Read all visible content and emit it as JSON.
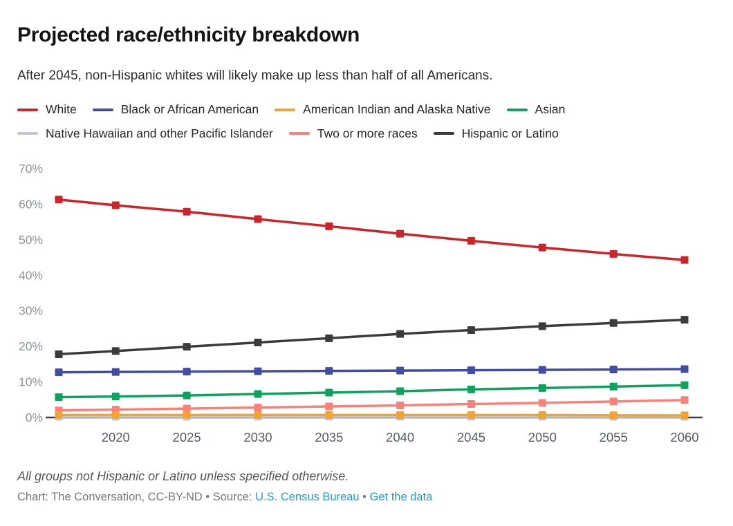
{
  "header": {
    "title": "Projected race/ethnicity breakdown",
    "subtitle": "After 2045, non-Hispanic whites will likely make up less than half of all Americans."
  },
  "legend": {
    "rows": [
      {
        "items": [
          {
            "label": "White",
            "color": "#cc2529"
          },
          {
            "label": "Black or African American",
            "color": "#414da0"
          },
          {
            "label": "American Indian and Alaska Native",
            "color": "#f2a431"
          },
          {
            "label": "Asian",
            "color": "#0fa15f"
          }
        ]
      },
      {
        "items": [
          {
            "label": "Native Hawaiian and other Pacific Islander",
            "color": "#c5c8ce"
          },
          {
            "label": "Two or more races",
            "color": "#f8827a"
          },
          {
            "label": "Hispanic or Latino",
            "color": "#3b3b3b"
          }
        ]
      }
    ]
  },
  "chart_data": {
    "type": "line",
    "x": [
      2016,
      2020,
      2025,
      2030,
      2035,
      2040,
      2045,
      2050,
      2055,
      2060
    ],
    "series": [
      {
        "name": "White",
        "color": "#cc2529",
        "values": [
          61.3,
          59.7,
          57.9,
          55.8,
          53.8,
          51.7,
          49.7,
          47.8,
          46.0,
          44.3
        ]
      },
      {
        "name": "Black or African American",
        "color": "#414da0",
        "values": [
          12.7,
          12.8,
          12.9,
          13.0,
          13.1,
          13.2,
          13.3,
          13.4,
          13.5,
          13.6
        ]
      },
      {
        "name": "American Indian and Alaska Native",
        "color": "#f2a431",
        "values": [
          0.7,
          0.7,
          0.7,
          0.7,
          0.7,
          0.7,
          0.7,
          0.7,
          0.6,
          0.6
        ]
      },
      {
        "name": "Asian",
        "color": "#0fa15f",
        "values": [
          5.7,
          5.9,
          6.2,
          6.6,
          7.0,
          7.4,
          7.9,
          8.3,
          8.7,
          9.1
        ]
      },
      {
        "name": "Native Hawaiian and other Pacific Islander",
        "color": "#c5c8ce",
        "values": [
          0.2,
          0.2,
          0.2,
          0.2,
          0.2,
          0.2,
          0.2,
          0.2,
          0.2,
          0.2
        ]
      },
      {
        "name": "Two or more races",
        "color": "#f8827a",
        "values": [
          2.0,
          2.2,
          2.5,
          2.8,
          3.1,
          3.4,
          3.8,
          4.1,
          4.5,
          4.9
        ]
      },
      {
        "name": "Hispanic or Latino",
        "color": "#3b3b3b",
        "values": [
          17.8,
          18.7,
          19.9,
          21.1,
          22.3,
          23.5,
          24.6,
          25.7,
          26.6,
          27.5
        ]
      }
    ],
    "draw_order": [
      4,
      5,
      2,
      3,
      1,
      6,
      0
    ],
    "title": "Projected race/ethnicity breakdown",
    "xlabel": "",
    "ylabel": "",
    "xlim": [
      2016,
      2060
    ],
    "ylim": [
      0,
      70
    ],
    "ytick_values": [
      0,
      10,
      20,
      30,
      40,
      50,
      60,
      70
    ],
    "ytick_labels": [
      "0%",
      "10%",
      "20%",
      "30%",
      "40%",
      "50%",
      "60%",
      "70%"
    ],
    "xtick_years": [
      2020,
      2025,
      2030,
      2035,
      2040,
      2045,
      2050,
      2055,
      2060
    ],
    "xtick_labels": [
      "2020",
      "2025",
      "2030",
      "2035",
      "2040",
      "2045",
      "2050",
      "2055",
      "2060"
    ],
    "grid": false,
    "legend_position": "top"
  },
  "footer": {
    "note": "All groups not Hispanic or Latino unless specified otherwise.",
    "credit_prefix": "Chart: The Conversation, CC-BY-ND • Source: ",
    "source_link": "U.S. Census Bureau",
    "separator": " • ",
    "data_link": "Get the data"
  }
}
